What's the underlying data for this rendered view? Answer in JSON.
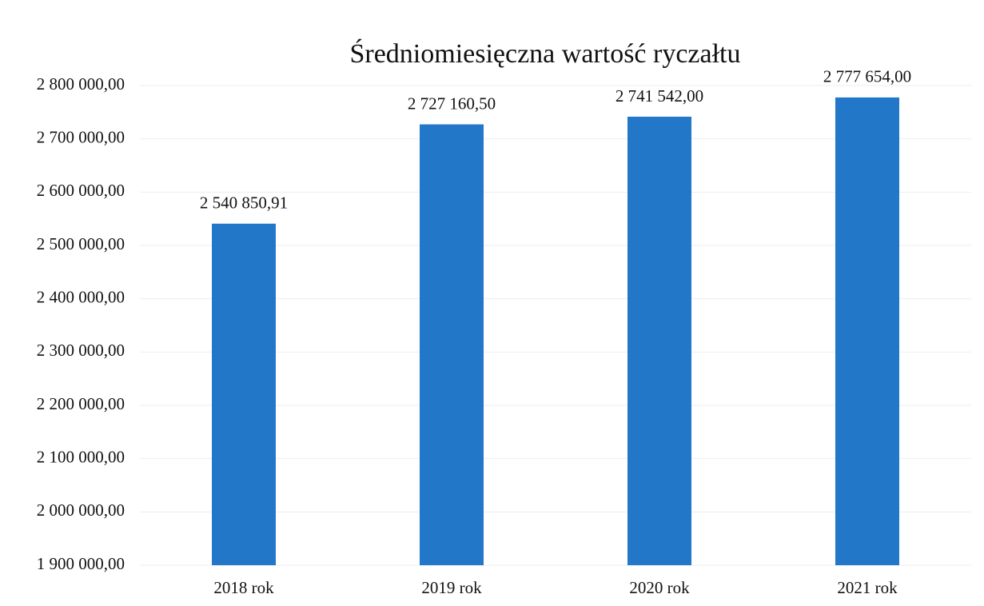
{
  "chart_data": {
    "type": "bar",
    "title": "Średniomiesięczna wartość ryczałtu",
    "categories": [
      "2018 rok",
      "2019 rok",
      "2020 rok",
      "2021 rok"
    ],
    "values": [
      2540850.91,
      2727160.5,
      2741542.0,
      2777654.0
    ],
    "value_labels": [
      "2 540 850,91",
      "2 727 160,50",
      "2 741 542,00",
      "2 777 654,00"
    ],
    "color": "#2277c8",
    "ylim": [
      1900000,
      2800000
    ],
    "yticks": [
      {
        "value": 1900000,
        "label": "1 900 000,00"
      },
      {
        "value": 2000000,
        "label": "2 000 000,00"
      },
      {
        "value": 2100000,
        "label": "2 100 000,00"
      },
      {
        "value": 2200000,
        "label": "2 200 000,00"
      },
      {
        "value": 2300000,
        "label": "2 300 000,00"
      },
      {
        "value": 2400000,
        "label": "2 400 000,00"
      },
      {
        "value": 2500000,
        "label": "2 500 000,00"
      },
      {
        "value": 2600000,
        "label": "2 600 000,00"
      },
      {
        "value": 2700000,
        "label": "2 700 000,00"
      },
      {
        "value": 2800000,
        "label": "2 800 000,00"
      }
    ],
    "grid": true
  }
}
